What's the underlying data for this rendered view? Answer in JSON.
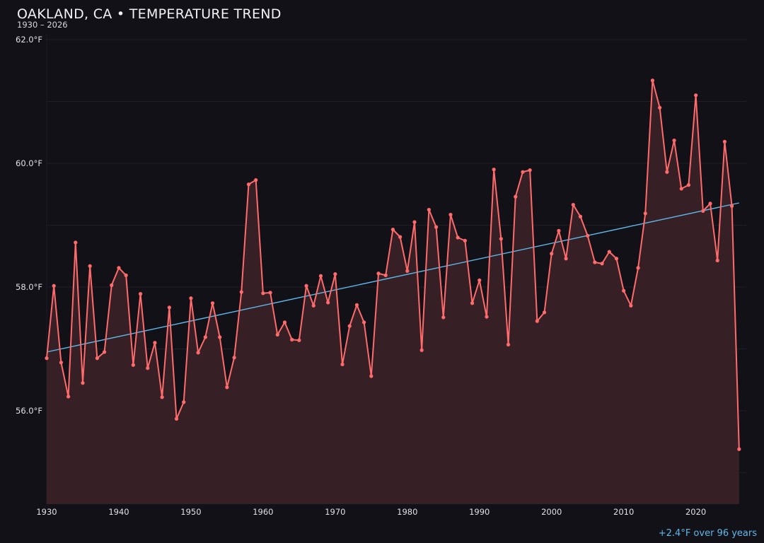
{
  "title": "OAKLAND, CA • TEMPERATURE TREND",
  "subtitle": "1930 – 2026",
  "footnote": "+2.4°F over 96 years",
  "colors": {
    "background": "#121117",
    "series": "#ff6b6b",
    "fill": "#361f25",
    "trend": "#5fb8ea",
    "grid": "#221f26"
  },
  "chart_data": {
    "type": "line",
    "title": "OAKLAND, CA • TEMPERATURE TREND",
    "xlabel": "",
    "ylabel": "",
    "xlim": [
      1930,
      2027
    ],
    "ylim": [
      54.5,
      62.1
    ],
    "grid": true,
    "x_ticks": [
      1930,
      1940,
      1950,
      1960,
      1970,
      1980,
      1990,
      2000,
      2010,
      2020
    ],
    "x_tick_labels": [
      "1930",
      "1940",
      "1950",
      "1960",
      "1970",
      "1980",
      "1990",
      "2000",
      "2010",
      "2020"
    ],
    "y_ticks": [
      56,
      58,
      60,
      62
    ],
    "y_tick_labels": [
      "56.0°F",
      "58.0°F",
      "60.0°F",
      "62.0°F"
    ],
    "x_start": 1930,
    "values": [
      56.85,
      58.02,
      56.78,
      56.23,
      58.72,
      56.45,
      58.34,
      56.85,
      56.95,
      58.03,
      58.31,
      58.19,
      56.74,
      57.89,
      56.69,
      57.1,
      56.22,
      57.67,
      55.87,
      56.14,
      57.82,
      56.94,
      57.19,
      57.74,
      57.19,
      56.38,
      56.86,
      57.92,
      59.66,
      59.73,
      57.9,
      57.91,
      57.23,
      57.43,
      57.15,
      57.14,
      58.02,
      57.7,
      58.18,
      57.75,
      58.21,
      56.75,
      57.37,
      57.71,
      57.43,
      56.56,
      58.22,
      58.19,
      58.93,
      58.81,
      58.26,
      59.05,
      56.98,
      59.25,
      58.97,
      57.51,
      59.17,
      58.8,
      58.75,
      57.74,
      58.11,
      57.52,
      59.9,
      58.78,
      57.07,
      59.46,
      59.86,
      59.89,
      57.45,
      57.59,
      58.54,
      58.91,
      58.46,
      59.33,
      59.14,
      58.83,
      58.4,
      58.38,
      58.57,
      58.46,
      57.94,
      57.7,
      58.31,
      59.19,
      61.34,
      60.9,
      59.86,
      60.37,
      59.59,
      59.65,
      61.1,
      59.23,
      59.35,
      58.43,
      60.35,
      59.31,
      55.38
    ],
    "trend": {
      "type": "linear",
      "start": [
        1930,
        56.95
      ],
      "end": [
        2026,
        59.36
      ]
    }
  }
}
